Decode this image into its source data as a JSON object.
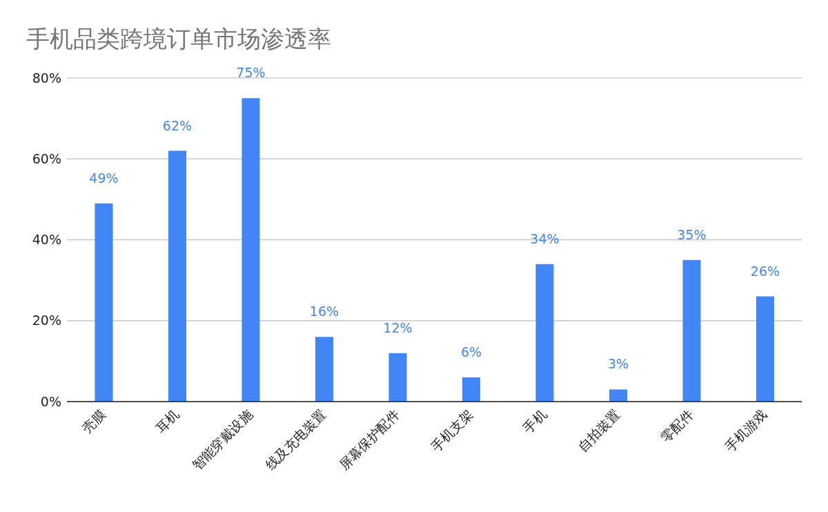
{
  "chart_data": {
    "type": "bar",
    "title": "手机品类跨境订单市场渗透率",
    "categories": [
      "壳膜",
      "耳机",
      "智能穿戴设施",
      "线及充电装置",
      "屏幕保护配件",
      "手机支架",
      "手机",
      "自拍装置",
      "零配件",
      "手机游戏"
    ],
    "values": [
      49,
      62,
      75,
      16,
      12,
      6,
      34,
      3,
      35,
      26
    ],
    "value_labels": [
      "49%",
      "62%",
      "75%",
      "16%",
      "12%",
      "6%",
      "34%",
      "3%",
      "35%",
      "26%"
    ],
    "color": "#4285f4",
    "ylim": [
      0,
      80
    ],
    "yticks": [
      {
        "value": 0,
        "label": "0%"
      },
      {
        "value": 20,
        "label": "20%"
      },
      {
        "value": 40,
        "label": "40%"
      },
      {
        "value": 60,
        "label": "60%"
      },
      {
        "value": 80,
        "label": "80%"
      }
    ],
    "grid": "y"
  }
}
